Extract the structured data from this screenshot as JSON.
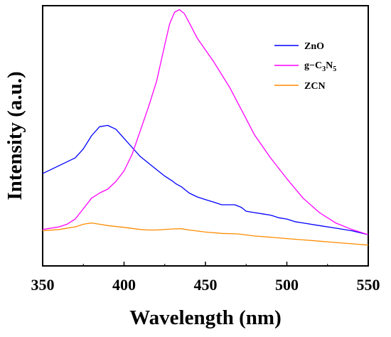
{
  "chart_data": {
    "type": "line",
    "xlabel": "Wavelength (nm)",
    "ylabel": "Intensity (a.u.)",
    "xlim": [
      350,
      550
    ],
    "ylim": [
      0,
      100
    ],
    "xticks": [
      "350",
      "400",
      "450",
      "500",
      "550"
    ],
    "y_tick_labels": false,
    "grid": false,
    "legend_position": "top-right",
    "series": [
      {
        "name": "ZnO",
        "color": "#0000ff",
        "x": [
          350,
          360,
          370,
          375,
          380,
          385,
          390,
          395,
          400,
          405,
          410,
          415,
          420,
          425,
          430,
          432,
          435,
          440,
          445,
          450,
          455,
          460,
          465,
          468,
          472,
          475,
          480,
          485,
          490,
          495,
          500,
          505,
          510,
          520,
          530,
          540,
          550
        ],
        "values": [
          35.5,
          38.5,
          41.5,
          45.0,
          50.0,
          53.5,
          54.0,
          52.5,
          49.0,
          45.5,
          42.0,
          39.5,
          37.0,
          34.5,
          32.5,
          31.5,
          30.5,
          28.0,
          26.5,
          25.5,
          24.5,
          23.5,
          23.5,
          23.5,
          22.5,
          21.0,
          20.5,
          20.0,
          19.5,
          18.5,
          18.0,
          17.0,
          16.5,
          15.5,
          14.5,
          13.5,
          12.0
        ]
      },
      {
        "name": "g−C3N5",
        "color": "#ff00ff",
        "x": [
          350,
          360,
          365,
          370,
          375,
          380,
          385,
          390,
          395,
          400,
          405,
          410,
          415,
          420,
          425,
          428,
          431,
          434,
          437,
          440,
          445,
          450,
          455,
          460,
          465,
          470,
          475,
          480,
          490,
          500,
          510,
          520,
          530,
          540,
          550
        ],
        "values": [
          14.0,
          15.0,
          16.0,
          18.0,
          22.0,
          26.0,
          28.0,
          29.5,
          32.5,
          36.5,
          43.0,
          52.0,
          61.0,
          71.0,
          85.0,
          93.0,
          97.5,
          98.5,
          97.0,
          93.5,
          87.5,
          83.0,
          78.5,
          73.5,
          68.5,
          62.5,
          56.5,
          50.5,
          41.5,
          33.5,
          26.0,
          20.5,
          16.5,
          14.0,
          12.0
        ]
      },
      {
        "name": "ZCN",
        "color": "#ff8c00",
        "x": [
          350,
          360,
          370,
          375,
          380,
          385,
          390,
          400,
          410,
          415,
          420,
          430,
          435,
          440,
          450,
          460,
          470,
          480,
          490,
          500,
          510,
          520,
          530,
          540,
          550
        ],
        "values": [
          13.5,
          14.0,
          15.0,
          16.0,
          16.5,
          16.0,
          15.5,
          14.8,
          14.0,
          13.8,
          13.8,
          14.2,
          14.3,
          13.8,
          13.0,
          12.5,
          12.3,
          11.5,
          11.0,
          10.5,
          10.0,
          9.5,
          9.0,
          8.5,
          8.0
        ]
      }
    ]
  },
  "legend": {
    "items": [
      {
        "label": "ZnO",
        "color": "#0000ff"
      },
      {
        "label_prefix": "g−C",
        "sub1": "3",
        "label_mid": "N",
        "sub2": "5",
        "color": "#ff00ff"
      },
      {
        "label": "ZCN",
        "color": "#ff8c00"
      }
    ]
  }
}
